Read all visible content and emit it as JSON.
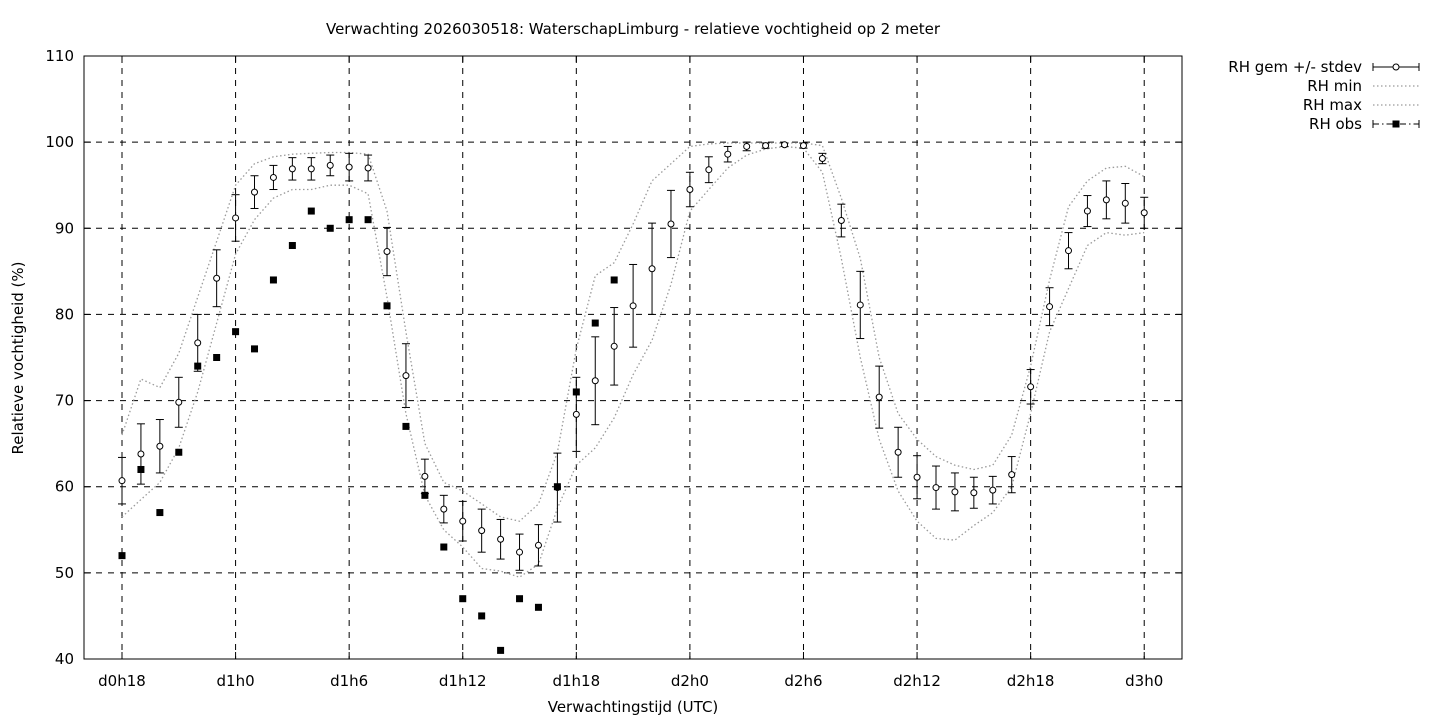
{
  "chart_data": {
    "type": "line",
    "title": "Verwachting 2026030518: WaterschapLimburg - relatieve vochtigheid op 2 meter",
    "xlabel": "Verwachtingstijd (UTC)",
    "ylabel": "Relatieve vochtigheid (%)",
    "ylim": [
      40,
      110
    ],
    "yticks": [
      40,
      50,
      60,
      70,
      80,
      90,
      100,
      110
    ],
    "x_unit": "hours since d0h0 (forecast lead time)",
    "xlim": [
      14,
      72
    ],
    "xticks": [
      {
        "x": 18,
        "label": "d0h18"
      },
      {
        "x": 24,
        "label": "d1h0"
      },
      {
        "x": 30,
        "label": "d1h6"
      },
      {
        "x": 36,
        "label": "d1h12"
      },
      {
        "x": 42,
        "label": "d1h18"
      },
      {
        "x": 48,
        "label": "d2h0"
      },
      {
        "x": 54,
        "label": "d2h6"
      },
      {
        "x": 60,
        "label": "d2h12"
      },
      {
        "x": 66,
        "label": "d2h18"
      },
      {
        "x": 72,
        "label": "d3h0"
      }
    ],
    "grid": true,
    "legend_position": "outside-top-right",
    "legend": [
      {
        "label": "RH gem +/- stdev",
        "series": "mean"
      },
      {
        "label": "RH min",
        "series": "min"
      },
      {
        "label": "RH max",
        "series": "max"
      },
      {
        "label": "RH obs",
        "series": "obs"
      }
    ],
    "series": [
      {
        "name": "RH gem +/- stdev",
        "key": "mean",
        "x": [
          18,
          19,
          20,
          21,
          22,
          23,
          24,
          25,
          26,
          27,
          28,
          29,
          30,
          31,
          32,
          33,
          34,
          35,
          36,
          37,
          38,
          39,
          40,
          41,
          42,
          43,
          44,
          45,
          46,
          47,
          48,
          49,
          50,
          51,
          52,
          53,
          54,
          55,
          56,
          57,
          58,
          59,
          60,
          61,
          62,
          63,
          64,
          65,
          66,
          67,
          68,
          69,
          70,
          71,
          72
        ],
        "values": [
          60.7,
          63.8,
          64.7,
          69.8,
          76.7,
          84.2,
          91.2,
          94.2,
          95.9,
          96.9,
          96.9,
          97.3,
          97.1,
          97.0,
          87.3,
          72.9,
          61.2,
          57.4,
          56.0,
          54.9,
          53.9,
          52.4,
          53.2,
          59.9,
          68.4,
          72.3,
          76.3,
          81.0,
          85.3,
          90.5,
          94.5,
          96.8,
          98.6,
          99.5,
          99.6,
          99.7,
          99.6,
          98.1,
          90.9,
          81.1,
          70.4,
          64.0,
          61.1,
          59.9,
          59.4,
          59.3,
          59.6,
          61.4,
          71.6,
          80.9,
          87.4,
          92.0,
          93.3,
          92.9,
          91.8
        ],
        "stdev": [
          2.7,
          3.5,
          3.1,
          2.9,
          3.3,
          3.3,
          2.7,
          1.9,
          1.4,
          1.3,
          1.3,
          1.2,
          1.6,
          1.5,
          2.8,
          3.7,
          2.0,
          1.6,
          2.3,
          2.5,
          2.3,
          2.1,
          2.4,
          4.0,
          4.3,
          5.1,
          4.5,
          4.8,
          5.3,
          3.9,
          2.0,
          1.5,
          0.9,
          0.5,
          0.3,
          0.2,
          0.3,
          0.6,
          1.9,
          3.9,
          3.6,
          2.9,
          2.5,
          2.5,
          2.2,
          1.8,
          1.6,
          2.1,
          2.0,
          2.2,
          2.1,
          1.8,
          2.2,
          2.3,
          1.8
        ]
      },
      {
        "name": "RH min",
        "key": "min",
        "style": "dotted",
        "x": [
          18,
          19,
          20,
          21,
          22,
          23,
          24,
          25,
          26,
          27,
          28,
          29,
          30,
          31,
          32,
          33,
          34,
          35,
          36,
          37,
          38,
          39,
          40,
          41,
          42,
          43,
          44,
          45,
          46,
          47,
          48,
          49,
          50,
          51,
          52,
          53,
          54,
          55,
          56,
          57,
          58,
          59,
          60,
          61,
          62,
          63,
          64,
          65,
          66,
          67,
          68,
          69,
          70,
          71,
          72
        ],
        "values": [
          56.5,
          58.5,
          60.5,
          64.5,
          71.0,
          79.0,
          87.0,
          91.0,
          93.5,
          94.5,
          94.5,
          95.0,
          95.0,
          94.0,
          82.0,
          68.5,
          59.0,
          55.0,
          53.0,
          50.5,
          50.2,
          49.5,
          51.0,
          57.5,
          62.5,
          64.5,
          68.0,
          73.0,
          77.0,
          83.5,
          92.0,
          94.5,
          97.0,
          98.5,
          99.2,
          99.5,
          99.3,
          96.5,
          86.5,
          75.0,
          65.5,
          59.5,
          56.0,
          54.0,
          53.8,
          55.5,
          57.0,
          60.0,
          68.5,
          78.0,
          83.0,
          88.0,
          89.5,
          89.2,
          89.5
        ]
      },
      {
        "name": "RH max",
        "key": "max",
        "style": "dotted",
        "x": [
          18,
          19,
          20,
          21,
          22,
          23,
          24,
          25,
          26,
          27,
          28,
          29,
          30,
          31,
          32,
          33,
          34,
          35,
          36,
          37,
          38,
          39,
          40,
          41,
          42,
          43,
          44,
          45,
          46,
          47,
          48,
          49,
          50,
          51,
          52,
          53,
          54,
          55,
          56,
          57,
          58,
          59,
          60,
          61,
          62,
          63,
          64,
          65,
          66,
          67,
          68,
          69,
          70,
          71,
          72
        ],
        "values": [
          66.0,
          72.5,
          71.5,
          75.5,
          82.0,
          88.5,
          95.0,
          97.5,
          98.3,
          98.6,
          98.7,
          98.8,
          98.8,
          98.6,
          92.0,
          78.0,
          65.0,
          60.5,
          59.5,
          58.0,
          56.5,
          56.0,
          58.0,
          64.0,
          76.0,
          84.5,
          86.0,
          90.5,
          95.5,
          97.5,
          99.5,
          99.8,
          99.9,
          99.9,
          99.9,
          99.9,
          99.9,
          99.6,
          93.5,
          86.5,
          75.0,
          68.5,
          65.5,
          63.5,
          62.5,
          62.0,
          62.5,
          66.0,
          74.0,
          84.0,
          92.5,
          95.5,
          97.0,
          97.2,
          96.0
        ]
      },
      {
        "name": "RH obs",
        "key": "obs",
        "x": [
          18,
          19,
          20,
          21,
          22,
          23,
          24,
          25,
          26,
          27,
          28,
          29,
          30,
          31,
          32,
          33,
          34,
          35,
          36,
          37,
          38,
          39,
          40,
          41,
          42,
          43,
          44
        ],
        "values": [
          52,
          62,
          57,
          64,
          74,
          75,
          78,
          76,
          84,
          88,
          92,
          90,
          91,
          91,
          81,
          67,
          59,
          53,
          47,
          45,
          41,
          47,
          46,
          60,
          71,
          79,
          84
        ]
      }
    ]
  }
}
